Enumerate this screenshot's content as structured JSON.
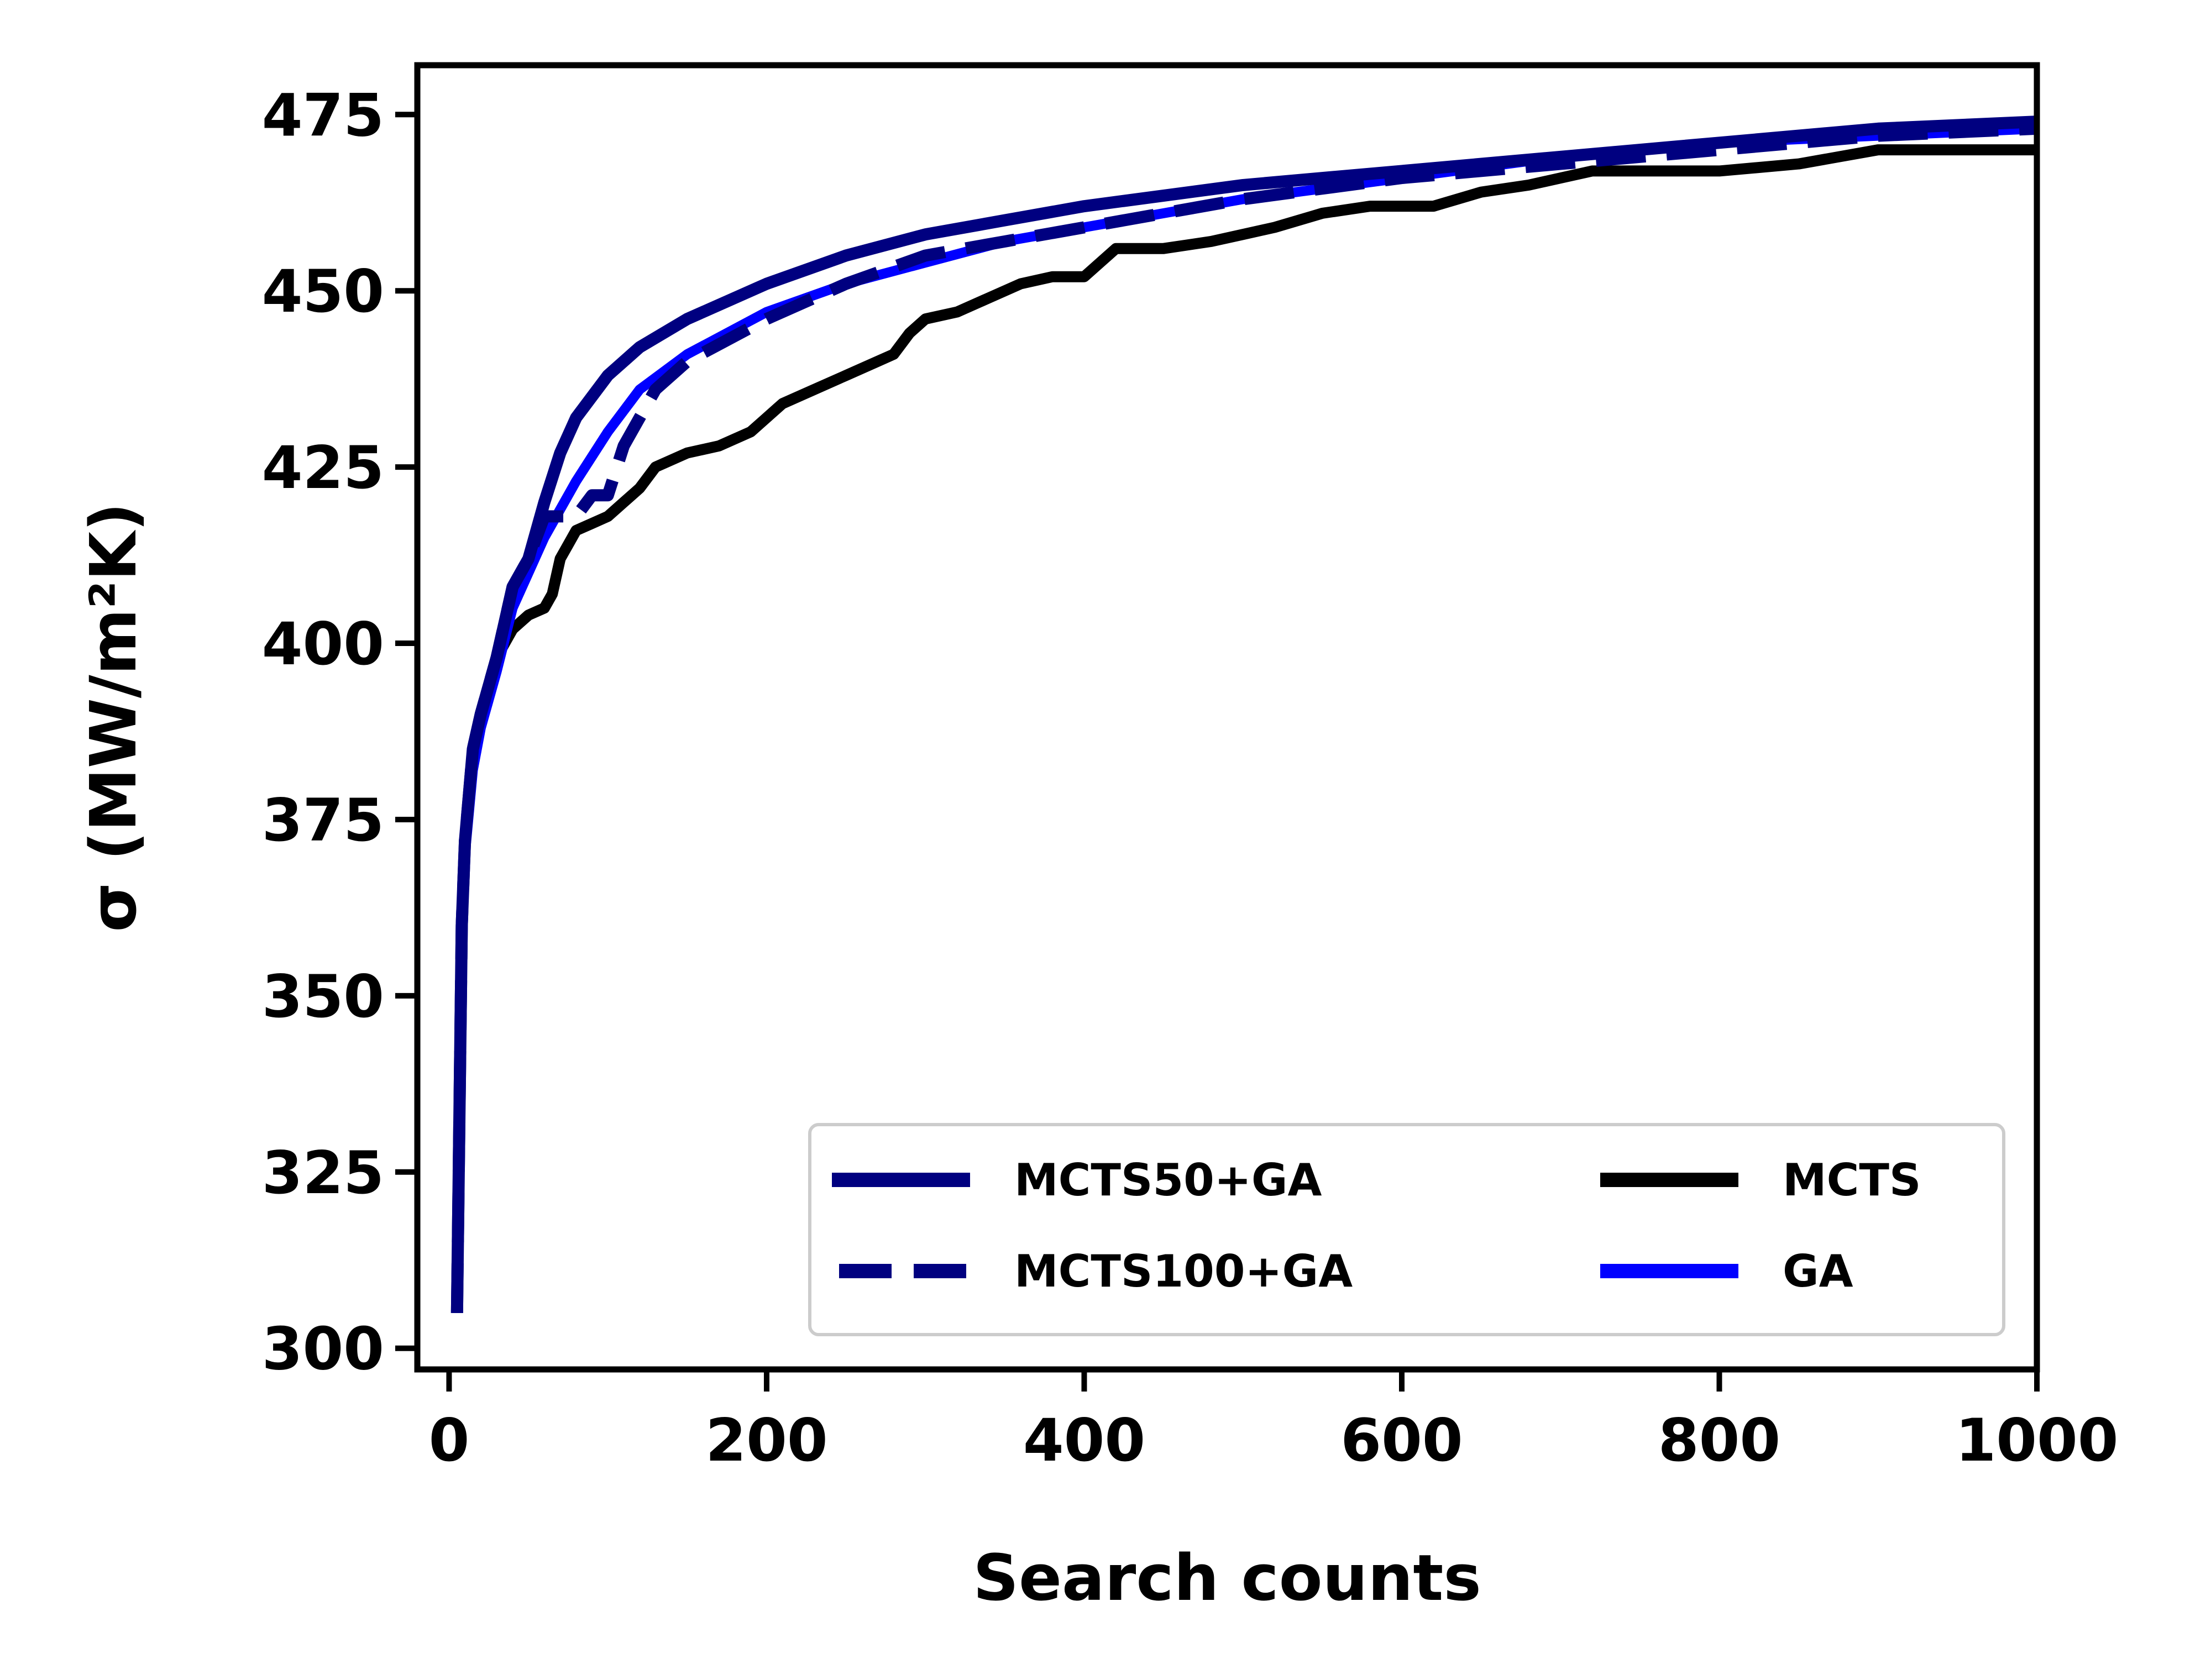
{
  "chart_data": {
    "type": "line",
    "xlabel": "Search counts",
    "ylabel": "σ (MW/m²K)",
    "xlim": [
      -20,
      1000
    ],
    "ylim": [
      297,
      482
    ],
    "xticks": [
      0,
      200,
      400,
      600,
      800,
      1000
    ],
    "yticks": [
      300,
      325,
      350,
      375,
      400,
      425,
      450,
      475
    ],
    "grid": false,
    "legend": {
      "placement": "lower-right",
      "columns": 2
    },
    "series": [
      {
        "name": "MCTS50+GA",
        "color": "#000080",
        "style": "solid",
        "x": [
          5,
          8,
          10,
          15,
          20,
          30,
          40,
          50,
          60,
          70,
          80,
          100,
          120,
          150,
          200,
          250,
          300,
          350,
          400,
          500,
          600,
          700,
          800,
          900,
          1000
        ],
        "y": [
          305,
          360,
          372,
          385,
          390,
          398,
          408,
          412,
          420,
          427,
          432,
          438,
          442,
          446,
          451,
          455,
          458,
          460,
          462,
          465,
          467,
          469,
          471,
          473,
          474
        ]
      },
      {
        "name": "MCTS100+GA",
        "color": "#000080",
        "style": "dashed",
        "x": [
          5,
          8,
          10,
          15,
          20,
          30,
          40,
          50,
          60,
          70,
          80,
          90,
          100,
          110,
          120,
          130,
          150,
          200,
          250,
          300,
          350,
          400,
          500,
          600,
          700,
          800,
          900,
          1000
        ],
        "y": [
          305,
          360,
          372,
          385,
          390,
          398,
          408,
          412,
          418,
          418,
          418,
          421,
          421,
          428,
          432,
          436,
          440,
          446,
          451,
          455,
          457,
          459,
          463,
          466,
          468,
          470,
          472,
          473
        ]
      },
      {
        "name": "MCTS",
        "color": "#000000",
        "style": "solid",
        "x": [
          5,
          8,
          10,
          15,
          20,
          30,
          40,
          45,
          50,
          60,
          65,
          70,
          75,
          80,
          90,
          100,
          110,
          120,
          130,
          140,
          150,
          170,
          190,
          200,
          210,
          230,
          250,
          270,
          280,
          290,
          300,
          320,
          340,
          360,
          380,
          400,
          410,
          420,
          450,
          480,
          500,
          520,
          550,
          580,
          620,
          650,
          680,
          700,
          720,
          750,
          800,
          850,
          900,
          950,
          1000
        ],
        "y": [
          305,
          360,
          372,
          385,
          390,
          398,
          402,
          403,
          404,
          405,
          407,
          412,
          414,
          416,
          417,
          418,
          420,
          422,
          425,
          426,
          427,
          428,
          430,
          432,
          434,
          436,
          438,
          440,
          441,
          444,
          446,
          447,
          449,
          451,
          452,
          452,
          454,
          456,
          456,
          457,
          458,
          459,
          461,
          462,
          462,
          464,
          465,
          466,
          467,
          467,
          467,
          468,
          470,
          470,
          470
        ]
      },
      {
        "name": "GA",
        "color": "#0000ff",
        "style": "solid",
        "x": [
          5,
          8,
          10,
          15,
          20,
          30,
          40,
          50,
          60,
          70,
          80,
          100,
          120,
          150,
          200,
          250,
          300,
          350,
          400,
          500,
          600,
          700,
          800,
          900,
          1000
        ],
        "y": [
          305,
          360,
          370,
          382,
          388,
          396,
          405,
          410,
          415,
          419,
          423,
          430,
          436,
          441,
          447,
          451,
          454,
          457,
          459,
          463,
          466,
          469,
          471,
          472,
          473
        ]
      }
    ]
  }
}
